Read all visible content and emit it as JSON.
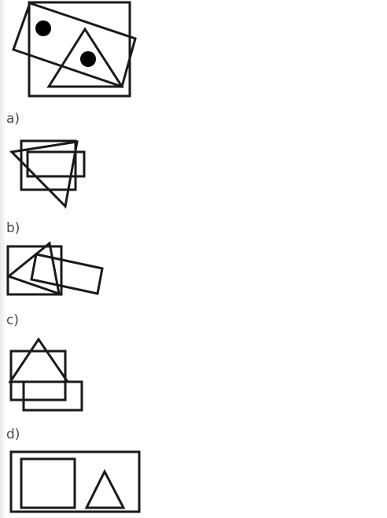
{
  "options": [
    {
      "id": "a",
      "label": "a)"
    },
    {
      "id": "b",
      "label": "b)"
    },
    {
      "id": "c",
      "label": "c)"
    },
    {
      "id": "d",
      "label": "d)"
    }
  ]
}
